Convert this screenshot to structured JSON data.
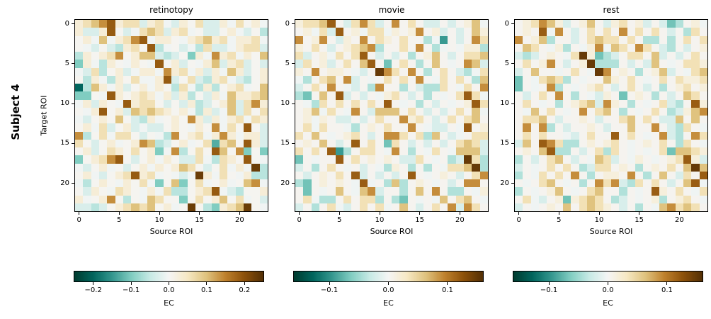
{
  "figure": {
    "row_label": "Subject 4"
  },
  "chart_data": {
    "type": "heatmap",
    "layout": "1x3 matrices with individual horizontal colorbars below",
    "grid": "off",
    "matrix_size": [
      24,
      24
    ],
    "colormap": {
      "name": "BrBG_r (negative = teal, positive = brown)",
      "stops": [
        "#003c30",
        "#01665e",
        "#35978f",
        "#80cdc1",
        "#c7eae5",
        "#f5f5f5",
        "#f6e8c3",
        "#dfc27d",
        "#bf812d",
        "#8c510a",
        "#543005"
      ]
    },
    "value_encoding_note": "rows are 24-char strings; numeric value of each cell = levels[char]",
    "panels": [
      {
        "title": "retinotopy",
        "xlabel": "Source ROI",
        "ylabel": "Target ROI",
        "xticks": [
          0,
          5,
          10,
          15,
          20
        ],
        "yticks": [
          0,
          5,
          10,
          15,
          20
        ],
        "vmin": -0.25,
        "vmax": 0.25,
        "colorbar": {
          "label": "EC",
          "tick_labels": [
            "−0.2",
            "−0.1",
            "0.0",
            "0.1",
            "0.2"
          ],
          "tick_values": [
            -0.2,
            -0.1,
            0.0,
            0.1,
            0.2
          ]
        },
        "levels": {
          "Z": -0.2,
          "m": -0.13,
          "g": -0.1,
          "t": -0.06,
          "c": -0.03,
          "w": -0.005,
          "W": 0.005,
          "C": 0.03,
          "T": 0.06,
          "G": 0.1,
          "M": 0.14,
          "D": 0.19,
          "X": 0.23
        },
        "rows": [
          "CTGMDCTTcCTwcCWTccCwTWCw",
          "CccCDWcwTGTcCTwWccWCwcWt",
          "WCwGwCTMDwCCWwCTGCTwCCTw",
          "WwcWctCTWDtwWcwtTccwCTTc",
          "tCWCTMWCGGctcWgCwMCTwCWG",
          "gCwtCWwCWwDWCcWwCGcCTcWc",
          "wcTtWCcwCCwMCTwCcCwGCcWC",
          "WtCwtCWTwwCDcWTctCTwctWC",
          "ZtGCwCcWCwCWtTwtCtWCTwWG",
          "ggWwDCWCTCwCcCtWcCwGCCTG",
          "wCcCWwDCTTWcWcCtcWCGcTMC",
          "WwCDWCcGTGTCWCwtCcwGcTWT",
          "wcWCWGWctCwWCWMCcCwCTwTC",
          "WCwTcWCcwccWCWwCWMwTWDWc",
          "MtWTwTTWcWwtMWCTwCMCwCCc",
          "TWcWCwWCMGtcWCwWTmTGWDCc",
          "WCcWTCWTWCgwMtWTWDGWMgWg",
          "gWCTMDWcWCwCWccTwtTCWDWw",
          "wcWCwWcWCwCWCGTWcWTwCwXt",
          "WCwcWCTDCTwWwcwXCwTWwCtt",
          "wtWCWwCWTwgWGgWTwWCwWGMw",
          "WcCWwTCWwCwTttWCTDwctWWC",
          "CwWCMWtWwGTWWgWTWCGWTwWc",
          "cctcWCTGTGWCwWXWtgCTGXWw"
        ]
      },
      {
        "title": "movie",
        "xlabel": "Source ROI",
        "ylabel": "",
        "xticks": [
          0,
          5,
          10,
          15,
          20
        ],
        "yticks": [
          0,
          5,
          10,
          15,
          20
        ],
        "vmin": -0.16,
        "vmax": 0.16,
        "colorbar": {
          "label": "EC",
          "tick_labels": [
            "−0.1",
            "0.0",
            "0.1"
          ],
          "tick_values": [
            -0.1,
            0.0,
            0.1
          ]
        },
        "levels": {
          "Z": -0.115,
          "m": -0.095,
          "g": -0.07,
          "t": -0.042,
          "c": -0.02,
          "w": -0.004,
          "W": 0.004,
          "C": 0.016,
          "T": 0.038,
          "G": 0.063,
          "M": 0.09,
          "D": 0.12,
          "X": 0.15
        },
        "rows": [
          "CTTGDWcTMTcWMWTWccWcWCGw",
          "WCwTcDWCwTTwCWCMWCcWcWGC",
          "MWCMWcCWMWTCWTWWtwmWcWMT",
          "CWTWcWCTGMtWWTWMWtwWwCCt",
          "TcWCwTWTDWcWcWtWCGWcWTTG",
          "cTWCcWTWGDWgWTWtWGWwWMGc",
          "CWMWCCWwcWXMTWMWtWTWctwT",
          "wtWTGWMcWwWTWTWMWwTWTWtG",
          "cWTWMWwcWtMWWtWcttTWwTWM",
          "tgWGWDcWcWwCTWcWtWwWTDTw",
          "WwtTWTWTWTWDWwWtWcWwWCDT",
          "WCGwTWwMWcGGGWTWcWcWTWGw",
          "WCwCWccWcWTWWMCTWcWTWTGW",
          "WTwTWWwtWCWTWWMWwccWwDWC",
          "TWGWwWCTWcWMMTWTtGWcwWTT",
          "WCWGWcWDWTWgTWcWcWcWTGTc",
          "TWTWDmtWTTWwMWtWwTWwGGGc",
          "gWwWWDWTWCWCWccTWwWtcXTt",
          "cWtWTWwWcWwtCWtWtWwTTGXt",
          "WcWCWTWDcWcWcWDWwWCWcWTM",
          "tgWCWCWwDwWtGtWCWwWcWMMW",
          "WgWwWGWwGMcWWtWGWMWttWwC",
          "WTwttWTWTTtWtgWwWwGWTGWw",
          "cWtWTwcWTWTwWGWcWTWMcMTW"
        ]
      },
      {
        "title": "rest",
        "xlabel": "Source ROI",
        "ylabel": "",
        "xticks": [
          0,
          5,
          10,
          15,
          20
        ],
        "yticks": [
          0,
          5,
          10,
          15,
          20
        ],
        "vmin": -0.16,
        "vmax": 0.16,
        "colorbar": {
          "label": "EC",
          "tick_labels": [
            "−0.1",
            "0.0",
            "0.1"
          ],
          "tick_values": [
            -0.1,
            0.0,
            0.1
          ]
        },
        "levels": {
          "Z": -0.115,
          "m": -0.095,
          "g": -0.07,
          "t": -0.042,
          "c": -0.02,
          "w": -0.004,
          "W": 0.004,
          "C": 0.016,
          "T": 0.038,
          "G": 0.063,
          "M": 0.09,
          "D": 0.12,
          "X": 0.15
        },
        "rows": [
          "WCTMGCcWCGWcCTWCcWcgtWCw",
          "WCWDwMWcWTWTWMWTWTWcWtTW",
          "MWCGtWWcWTGTTWTWttWtWTWT",
          "WGTWwCtWwCMwGTWMTWctWcWC",
          "ctcWCWwTXCgtcWTTWGcWcWTW",
          "WTWCMWcWCXtttWcWcGWwWTTC",
          "cWGWWwWTWwXMWCWtWCGcWwTG",
          "gWwTGTtWwWWGCWTWwWTWTCCT",
          "gWwWMtWwWCTWcWTWcWtWCTWC",
          "WcWTWMWtWwcCWgWCWtWcWGTW",
          "WTWwWtWCTGcMCWtWwWTctWDC",
          "WwGWTWwWMWTGWtWwWTWtcCGM",
          "WTTGWcWWCWcWWTGWTWccGWGW",
          "WMWMtWcWWCWcWWGWWMWctTWw",
          "WTWTWWwcWTWWDWTWwWMctWMT",
          "cGWDMTttWCWCTWwWCWTWtTWw",
          "WCWGDttWcWTtTWwWwWTgGGTC",
          "tWcWTGWcWwGTcWwCWwWCTDCc",
          "cWwWTWTWtcTTWCWtWCWTWGXG",
          "tWwTWTWMWtWCCWMWtWGWcTWD",
          "WwWTGWwWtWMTMctTWTWcWGDw",
          "tWwWCGWwWTGWWtWwWDCWTWwT",
          "WTwcWCgCTGTWtcWwWCtWCTWw",
          "cWwWCWGWTGTCWcWtWwGMTGTW"
        ]
      }
    ]
  }
}
